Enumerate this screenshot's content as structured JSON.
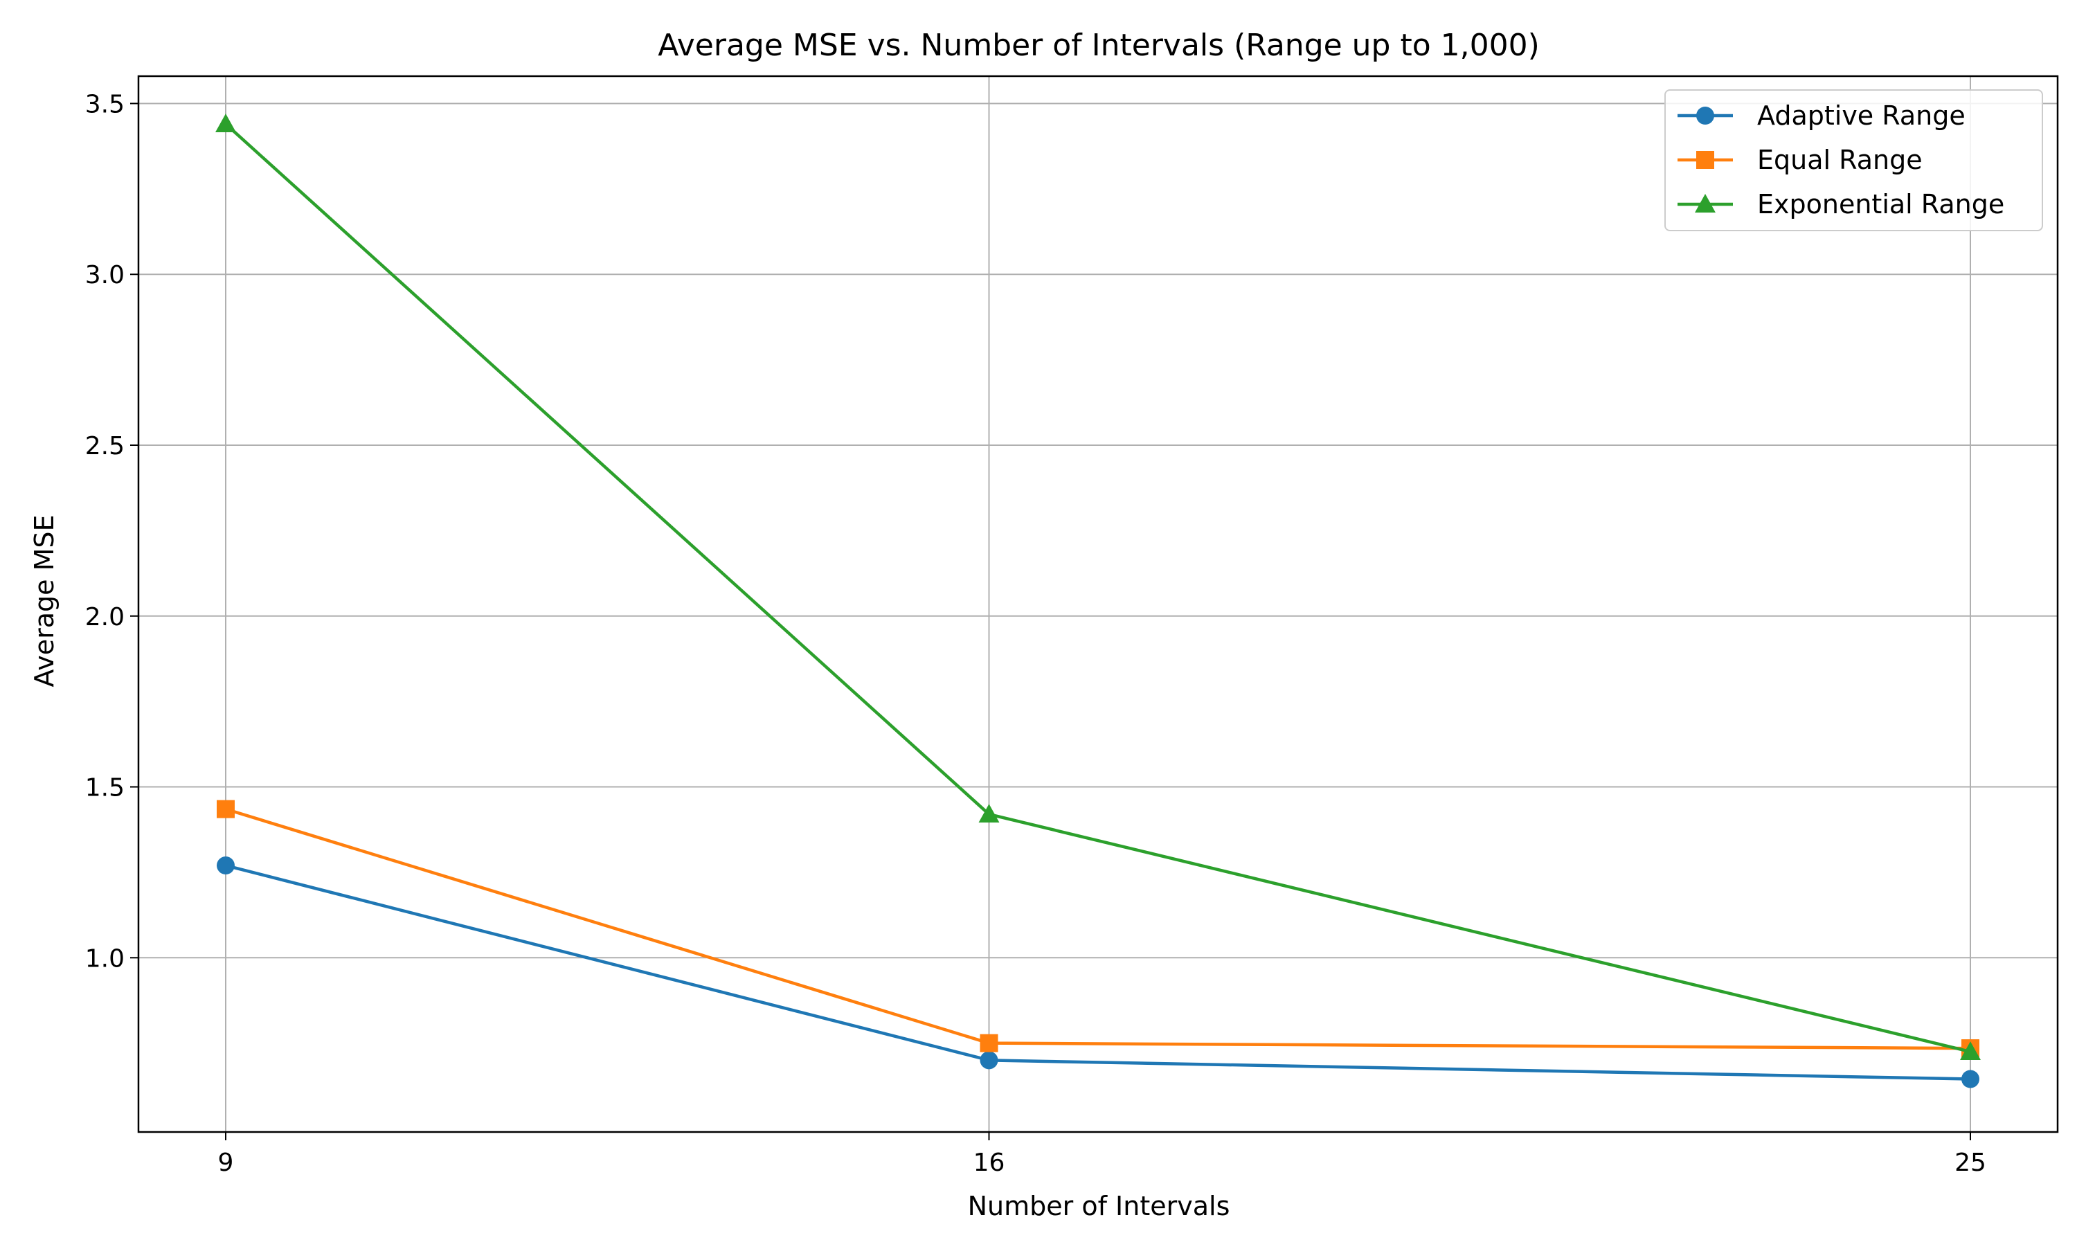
{
  "chart_data": {
    "type": "line",
    "title": "Average MSE vs. Number of Intervals (Range up to 1,000)",
    "xlabel": "Number of Intervals",
    "ylabel": "Average MSE",
    "x": [
      9,
      16,
      25
    ],
    "x_tick_labels": [
      "9",
      "16",
      "25"
    ],
    "xlim": [
      8.2,
      25.8
    ],
    "ylim": [
      0.49,
      3.58
    ],
    "y_ticks": [
      1.0,
      1.5,
      2.0,
      2.5,
      3.0,
      3.5
    ],
    "y_tick_labels": [
      "1.0",
      "1.5",
      "2.0",
      "2.5",
      "3.0",
      "3.5"
    ],
    "grid": true,
    "legend_position": "top-right",
    "series": [
      {
        "name": "Adaptive Range",
        "color": "#1f77b4",
        "marker": "circle",
        "values": [
          1.27,
          0.7,
          0.645
        ]
      },
      {
        "name": "Equal Range",
        "color": "#ff7f0e",
        "marker": "square",
        "values": [
          1.435,
          0.75,
          0.735
        ]
      },
      {
        "name": "Exponential Range",
        "color": "#2ca02c",
        "marker": "triangle",
        "values": [
          3.44,
          1.42,
          0.725
        ]
      }
    ]
  }
}
